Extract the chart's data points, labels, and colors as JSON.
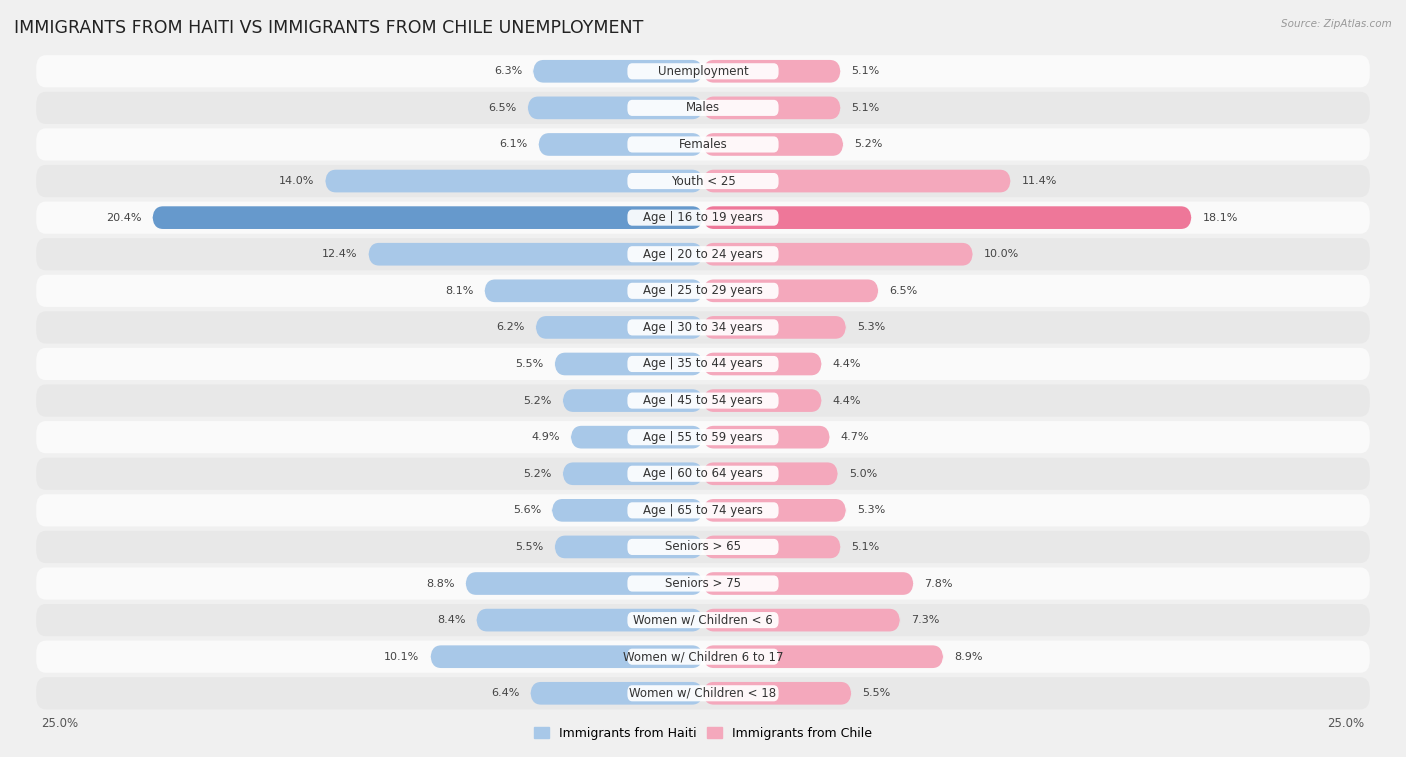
{
  "title": "IMMIGRANTS FROM HAITI VS IMMIGRANTS FROM CHILE UNEMPLOYMENT",
  "source": "Source: ZipAtlas.com",
  "categories": [
    "Unemployment",
    "Males",
    "Females",
    "Youth < 25",
    "Age | 16 to 19 years",
    "Age | 20 to 24 years",
    "Age | 25 to 29 years",
    "Age | 30 to 34 years",
    "Age | 35 to 44 years",
    "Age | 45 to 54 years",
    "Age | 55 to 59 years",
    "Age | 60 to 64 years",
    "Age | 65 to 74 years",
    "Seniors > 65",
    "Seniors > 75",
    "Women w/ Children < 6",
    "Women w/ Children 6 to 17",
    "Women w/ Children < 18"
  ],
  "haiti_values": [
    6.3,
    6.5,
    6.1,
    14.0,
    20.4,
    12.4,
    8.1,
    6.2,
    5.5,
    5.2,
    4.9,
    5.2,
    5.6,
    5.5,
    8.8,
    8.4,
    10.1,
    6.4
  ],
  "chile_values": [
    5.1,
    5.1,
    5.2,
    11.4,
    18.1,
    10.0,
    6.5,
    5.3,
    4.4,
    4.4,
    4.7,
    5.0,
    5.3,
    5.1,
    7.8,
    7.3,
    8.9,
    5.5
  ],
  "haiti_color": "#a8c8e8",
  "chile_color": "#f4a8bc",
  "haiti_highlight_color": "#6699cc",
  "chile_highlight_color": "#ee7799",
  "highlight_rows": [
    4
  ],
  "axis_limit": 25.0,
  "background_color": "#f0f0f0",
  "row_bg_light": "#fafafa",
  "row_bg_dark": "#e8e8e8",
  "legend_haiti": "Immigrants from Haiti",
  "legend_chile": "Immigrants from Chile",
  "title_fontsize": 12.5,
  "label_fontsize": 8.5,
  "value_fontsize": 8.0
}
